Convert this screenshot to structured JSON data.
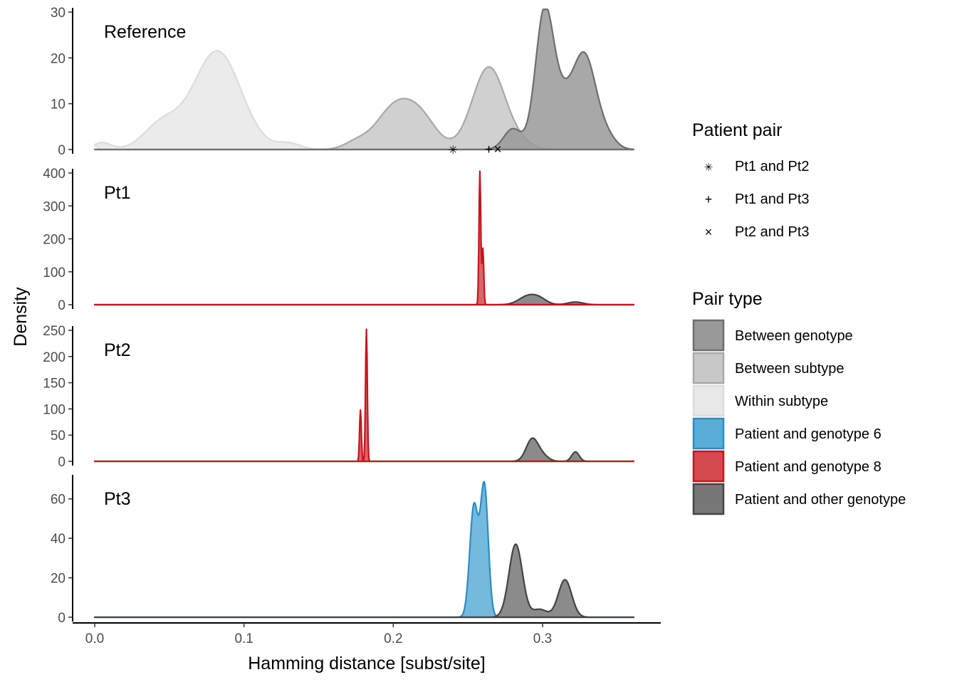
{
  "chart_data": {
    "type": "area",
    "xlabel": "Hamming distance [subst/site]",
    "ylabel": "Density",
    "xlim": [
      0.0,
      0.36
    ],
    "x_ticks": [
      "0.0",
      "0.1",
      "0.2",
      "0.3"
    ],
    "grid": false,
    "legend_placement": "right",
    "colors": {
      "Between genotype": "#999999",
      "Between subtype": "#c8c8c8",
      "Within subtype": "#e8e8e8",
      "Patient and genotype 6": "#2b8cc4",
      "Patient and genotype 8": "#c4161c",
      "Patient and other genotype": "#555555"
    },
    "legends": [
      {
        "title": "Patient pair",
        "items": [
          {
            "label": "Pt1 and Pt2",
            "symbol": "✳"
          },
          {
            "label": "Pt1 and Pt3",
            "symbol": "+"
          },
          {
            "label": "Pt2 and Pt3",
            "symbol": "×"
          }
        ]
      },
      {
        "title": "Pair type",
        "items": [
          {
            "label": "Between genotype",
            "fill": "#999999",
            "stroke": "#6e6e6e"
          },
          {
            "label": "Between subtype",
            "fill": "#c8c8c8",
            "stroke": "#a8a8a8"
          },
          {
            "label": "Within subtype",
            "fill": "#e8e8e8",
            "stroke": "#dcdcdc"
          },
          {
            "label": "Patient and genotype 6",
            "fill": "#5aaed6",
            "stroke": "#2b8cc4"
          },
          {
            "label": "Patient and genotype 8",
            "fill": "#d24b4f",
            "stroke": "#c4161c"
          },
          {
            "label": "Patient and other genotype",
            "fill": "#777777",
            "stroke": "#444444"
          }
        ]
      }
    ],
    "panels": [
      {
        "label": "Reference",
        "ylim": [
          0,
          30
        ],
        "y_ticks": [
          0,
          10,
          20,
          30
        ],
        "points": [
          {
            "pair": "Pt1 and Pt2",
            "symbol": "✳",
            "x": 0.24
          },
          {
            "pair": "Pt1 and Pt3",
            "symbol": "+",
            "x": 0.264
          },
          {
            "pair": "Pt2 and Pt3",
            "symbol": "×",
            "x": 0.27
          }
        ],
        "series": [
          {
            "type": "Within subtype",
            "peaks": [
              [
                0.005,
                1.5,
                0.006
              ],
              [
                0.045,
                5.5,
                0.012
              ],
              [
                0.082,
                21.5,
                0.016
              ],
              [
                0.13,
                1.3,
                0.008
              ]
            ]
          },
          {
            "type": "Between subtype",
            "peaks": [
              [
                0.175,
                1.5,
                0.008
              ],
              [
                0.2,
                8.5,
                0.012
              ],
              [
                0.218,
                6.5,
                0.011
              ],
              [
                0.264,
                18,
                0.011
              ],
              [
                0.285,
                1.0,
                0.008
              ]
            ]
          },
          {
            "type": "Between genotype",
            "peaks": [
              [
                0.28,
                4.5,
                0.006
              ],
              [
                0.301,
                28.5,
                0.006
              ],
              [
                0.312,
                9.0,
                0.007
              ],
              [
                0.328,
                20.5,
                0.008
              ],
              [
                0.344,
                2.0,
                0.006
              ]
            ]
          }
        ]
      },
      {
        "label": "Pt1",
        "ylim": [
          0,
          400
        ],
        "y_ticks": [
          0,
          100,
          200,
          300,
          400
        ],
        "series": [
          {
            "type": "Patient and other genotype",
            "peaks": [
              [
                0.29,
                25,
                0.006
              ],
              [
                0.298,
                15,
                0.005
              ],
              [
                0.322,
                8,
                0.005
              ]
            ]
          },
          {
            "type": "Patient and genotype 8",
            "peaks": [
              [
                0.258,
                405,
                0.0006
              ],
              [
                0.26,
                170,
                0.0006
              ]
            ]
          }
        ]
      },
      {
        "label": "Pt2",
        "ylim": [
          0,
          250
        ],
        "y_ticks": [
          0,
          50,
          100,
          150,
          200,
          250
        ],
        "series": [
          {
            "type": "Patient and other genotype",
            "peaks": [
              [
                0.293,
                42,
                0.004
              ],
              [
                0.3,
                10,
                0.004
              ],
              [
                0.322,
                18,
                0.0025
              ]
            ]
          },
          {
            "type": "Patient and genotype 8",
            "peaks": [
              [
                0.178,
                98,
                0.0006
              ],
              [
                0.182,
                252,
                0.0006
              ]
            ]
          }
        ]
      },
      {
        "label": "Pt3",
        "ylim": [
          0,
          70
        ],
        "y_ticks": [
          0,
          20,
          40,
          60
        ],
        "series": [
          {
            "type": "Patient and genotype 6",
            "peaks": [
              [
                0.254,
                56,
                0.0028
              ],
              [
                0.261,
                66,
                0.0026
              ]
            ]
          },
          {
            "type": "Patient and other genotype",
            "peaks": [
              [
                0.282,
                37,
                0.0045
              ],
              [
                0.298,
                4,
                0.005
              ],
              [
                0.315,
                19,
                0.0045
              ]
            ]
          }
        ]
      }
    ]
  }
}
